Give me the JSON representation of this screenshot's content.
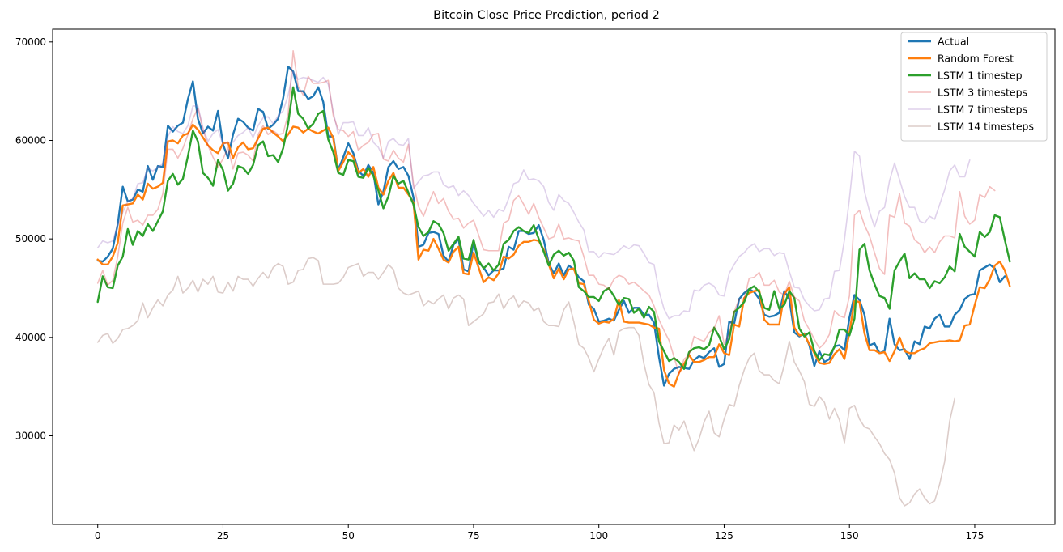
{
  "chart_data": {
    "type": "line",
    "title": "Bitcoin Close Price Prediction, period 2",
    "xlabel": "",
    "ylabel": "",
    "xlim": [
      -9,
      191
    ],
    "ylim": [
      21000,
      71300
    ],
    "xticks": [
      0,
      25,
      50,
      75,
      100,
      125,
      150,
      175
    ],
    "yticks": [
      30000,
      40000,
      50000,
      60000,
      70000
    ],
    "grid": false,
    "legend_position": "top-right",
    "series": [
      {
        "name": "Actual",
        "color": "#1f77b4",
        "width": 2.4,
        "opacity": 1,
        "x0": 0,
        "values": [
          47800,
          47700,
          48200,
          49000,
          51500,
          55300,
          53800,
          54000,
          55000,
          54800,
          57400,
          56000,
          57400,
          57300,
          61500,
          60900,
          61500,
          61800,
          64200,
          66000,
          62200,
          60700,
          61400,
          61000,
          63000,
          59600,
          58200,
          60600,
          62200,
          61900,
          61300,
          61000,
          63200,
          62900,
          61200,
          61600,
          62200,
          64300,
          67500,
          67000,
          65000,
          65000,
          64200,
          64500,
          65400,
          63900,
          60400,
          60400,
          57000,
          58300,
          59700,
          58700,
          56900,
          56400,
          57500,
          56700,
          53500,
          54800,
          57300,
          57900,
          57100,
          57300,
          56400,
          54200,
          49200,
          49400,
          50600,
          50700,
          50500,
          48300,
          47700,
          49400,
          50000,
          46900,
          46700,
          49700,
          47600,
          47100,
          46300,
          46800,
          46800,
          47000,
          49200,
          48900,
          50800,
          50800,
          50500,
          50600,
          51400,
          49900,
          47500,
          46500,
          47500,
          46300,
          47300,
          46900,
          46100,
          45700,
          43300,
          42900,
          41600,
          41700,
          41900,
          41700,
          42800,
          43700,
          42500,
          43000,
          43000,
          42300,
          42300,
          41500,
          38000,
          35100,
          36300,
          36800,
          37000,
          36900,
          36800,
          37700,
          38100,
          37900,
          38500,
          38900,
          37000,
          37300,
          41600,
          41400,
          43900,
          44500,
          44900,
          44600,
          43900,
          42300,
          42100,
          42200,
          42500,
          44700,
          43900,
          40500,
          40100,
          40400,
          39200,
          37100,
          38600,
          37500,
          37800,
          39100,
          39200,
          38700,
          42000,
          44300,
          43800,
          42300,
          39200,
          39400,
          38400,
          38600,
          41900,
          39300,
          38700,
          38800,
          37800,
          39600,
          39300,
          41100,
          40900,
          41900,
          42300,
          41100,
          41100,
          42300,
          42800,
          43900,
          44300,
          44400,
          46800,
          47100,
          47400,
          47000,
          45600,
          46200
        ]
      },
      {
        "name": "Random Forest",
        "color": "#ff7f0e",
        "width": 2.4,
        "opacity": 1,
        "x0": 0,
        "values": [
          47900,
          47400,
          47400,
          48200,
          49600,
          53400,
          53500,
          53600,
          54500,
          54000,
          55600,
          55100,
          55300,
          55700,
          59900,
          60000,
          59700,
          60500,
          60700,
          61600,
          61100,
          60300,
          59500,
          59000,
          58700,
          59700,
          59800,
          58200,
          59300,
          59800,
          59100,
          59200,
          60200,
          61200,
          61300,
          60800,
          60400,
          59900,
          60600,
          61400,
          61300,
          60800,
          61200,
          60900,
          60700,
          61000,
          61300,
          60200,
          56900,
          57800,
          58800,
          58300,
          56700,
          57100,
          56300,
          57300,
          55200,
          54500,
          55900,
          56700,
          55200,
          55200,
          54500,
          53700,
          47900,
          48900,
          48800,
          50000,
          49000,
          47900,
          47600,
          48700,
          49200,
          46500,
          46400,
          48600,
          47100,
          45600,
          46100,
          45800,
          46500,
          48200,
          48000,
          48400,
          49300,
          49700,
          49700,
          49900,
          49800,
          48900,
          47400,
          46000,
          47000,
          45900,
          46900,
          47000,
          45500,
          45400,
          43700,
          41800,
          41400,
          41600,
          41500,
          41900,
          43800,
          41600,
          41500,
          41500,
          41500,
          41400,
          41300,
          41000,
          40900,
          36700,
          35300,
          35000,
          36400,
          37300,
          38200,
          37500,
          37500,
          37700,
          38000,
          38000,
          39300,
          38400,
          38200,
          41300,
          41100,
          44000,
          44500,
          44700,
          44800,
          41800,
          41300,
          41300,
          41300,
          44400,
          45100,
          41000,
          40200,
          40300,
          39300,
          38400,
          37400,
          37300,
          37400,
          38300,
          38800,
          37800,
          40500,
          43700,
          43600,
          40400,
          38700,
          38700,
          38400,
          38500,
          37600,
          38600,
          40000,
          38600,
          38400,
          38400,
          38700,
          38900,
          39400,
          39500,
          39600,
          39600,
          39700,
          39600,
          39700,
          41200,
          41300,
          43300,
          45100,
          45000,
          45900,
          47300,
          47700,
          46800,
          45200
        ]
      },
      {
        "name": "LSTM 1 timestep",
        "color": "#2ca02c",
        "width": 2.4,
        "opacity": 1,
        "x0": 0,
        "values": [
          43600,
          46200,
          45100,
          45000,
          47300,
          48200,
          51000,
          49400,
          50800,
          50300,
          51500,
          50800,
          51800,
          52800,
          55900,
          56600,
          55500,
          56100,
          58400,
          61000,
          59900,
          56700,
          56200,
          55400,
          58000,
          57000,
          54900,
          55600,
          57400,
          57200,
          56600,
          57500,
          59500,
          59900,
          58400,
          58500,
          57800,
          59200,
          61700,
          65400,
          62700,
          62200,
          61200,
          61700,
          62700,
          63000,
          60100,
          58800,
          56700,
          56500,
          58000,
          57900,
          56300,
          56200,
          57200,
          56400,
          54900,
          53100,
          54300,
          56400,
          55600,
          55900,
          54700,
          53500,
          51200,
          50300,
          50700,
          51800,
          51500,
          50600,
          48800,
          49500,
          50200,
          48000,
          47900,
          49900,
          47800,
          47000,
          47500,
          46800,
          47400,
          49500,
          49900,
          50800,
          51200,
          50800,
          50600,
          51400,
          50000,
          48700,
          47300,
          48400,
          48800,
          48300,
          48600,
          47800,
          45100,
          44700,
          44100,
          44100,
          43700,
          44700,
          45000,
          44200,
          43300,
          44000,
          43900,
          42500,
          42900,
          42000,
          43100,
          42600,
          39600,
          38600,
          37600,
          37900,
          37500,
          36800,
          38500,
          38900,
          39000,
          38800,
          39200,
          41000,
          40100,
          38800,
          39800,
          42600,
          43000,
          43600,
          44900,
          45200,
          44600,
          43000,
          42800,
          44700,
          42900,
          43300,
          44700,
          44000,
          40900,
          40100,
          40500,
          38600,
          37700,
          38300,
          38200,
          39000,
          40800,
          40800,
          40200,
          41900,
          48900,
          49500,
          46800,
          45400,
          44200,
          44000,
          42900,
          46800,
          47700,
          48500,
          46000,
          46500,
          45900,
          45900,
          45000,
          45700,
          45500,
          46100,
          47200,
          46700,
          50500,
          49200,
          48700,
          48200,
          50700,
          50200,
          50700,
          52400,
          52200,
          49900,
          47700
        ]
      },
      {
        "name": "LSTM 3 timesteps",
        "color": "#d62728",
        "width": 1.6,
        "opacity": 0.3,
        "x0": 0,
        "values": [
          45500,
          46800,
          45300,
          45800,
          48200,
          51600,
          53200,
          51700,
          51900,
          51400,
          52400,
          52400,
          53000,
          54600,
          59100,
          59100,
          58200,
          59200,
          60600,
          62200,
          63300,
          61100,
          59500,
          58300,
          57300,
          58100,
          59300,
          57100,
          58700,
          58800,
          58500,
          57900,
          60600,
          61500,
          60600,
          61000,
          60600,
          60700,
          62700,
          69100,
          65500,
          64600,
          66500,
          65800,
          65800,
          65900,
          66100,
          62500,
          61100,
          61000,
          60400,
          60900,
          59000,
          59500,
          59800,
          60600,
          60700,
          58100,
          57900,
          59000,
          58200,
          57800,
          59600,
          55600,
          53300,
          52300,
          53600,
          54800,
          53600,
          54100,
          52800,
          52000,
          52100,
          51100,
          51600,
          51900,
          50400,
          48900,
          48800,
          48800,
          48800,
          51600,
          51900,
          53900,
          54400,
          53500,
          52500,
          53600,
          52200,
          51100,
          50000,
          50200,
          51500,
          50000,
          50100,
          49900,
          49800,
          48200,
          46300,
          46300,
          45400,
          45300,
          44900,
          45900,
          46300,
          46100,
          45400,
          45600,
          45200,
          44700,
          44300,
          43200,
          41800,
          40700,
          39700,
          38000,
          36300,
          37800,
          38200,
          40100,
          39800,
          39600,
          40500,
          40900,
          42200,
          39300,
          40400,
          42600,
          43900,
          43900,
          46000,
          46100,
          46600,
          45300,
          45300,
          45800,
          44600,
          44300,
          45700,
          44100,
          43700,
          41700,
          40800,
          39800,
          38900,
          39400,
          40300,
          42700,
          42200,
          42000,
          44200,
          52400,
          52900,
          51400,
          50300,
          48600,
          47000,
          46400,
          52400,
          52200,
          54600,
          51600,
          51300,
          49900,
          49500,
          48600,
          49200,
          48600,
          49700,
          50300,
          50300,
          50100,
          54800,
          52300,
          51500,
          51900,
          54500,
          54200,
          55300,
          54900
        ]
      },
      {
        "name": "LSTM 7 timesteps",
        "color": "#9467bd",
        "width": 1.6,
        "opacity": 0.3,
        "x0": 0,
        "values": [
          49100,
          49800,
          49600,
          49800,
          51400,
          52700,
          53800,
          54100,
          55600,
          55700,
          57200,
          56900,
          57300,
          57600,
          60400,
          61400,
          60900,
          60700,
          61500,
          63500,
          63500,
          61300,
          59900,
          60700,
          61100,
          59600,
          59800,
          59800,
          60500,
          60800,
          61300,
          60300,
          61500,
          62300,
          62400,
          61700,
          62500,
          63000,
          64600,
          67000,
          66200,
          66400,
          66300,
          66100,
          65900,
          66400,
          65700,
          62900,
          60600,
          61800,
          61800,
          61900,
          60500,
          60500,
          61300,
          59800,
          59300,
          58200,
          59900,
          60200,
          59600,
          59500,
          60200,
          55100,
          55800,
          56400,
          56500,
          56800,
          56800,
          55500,
          55200,
          55400,
          54400,
          54900,
          54400,
          53600,
          53000,
          52300,
          52900,
          52200,
          53000,
          52800,
          54100,
          55600,
          55800,
          57000,
          56000,
          56100,
          55900,
          55300,
          53700,
          52900,
          54500,
          53900,
          53600,
          52700,
          51700,
          50900,
          48700,
          48700,
          48100,
          48600,
          48500,
          48400,
          48800,
          49300,
          49000,
          49400,
          49300,
          48500,
          47600,
          47400,
          44700,
          42900,
          41900,
          42200,
          42200,
          42700,
          42600,
          44800,
          44700,
          45300,
          45500,
          45200,
          44300,
          44200,
          46500,
          47400,
          48200,
          48600,
          49200,
          49500,
          48700,
          49000,
          49000,
          48300,
          48600,
          48500,
          46700,
          45100,
          45000,
          43800,
          43200,
          42700,
          42800,
          43900,
          44000,
          46700,
          46800,
          49900,
          54100,
          58900,
          58400,
          54800,
          52800,
          51200,
          52800,
          53200,
          55900,
          57700,
          56000,
          54300,
          53200,
          53200,
          51800,
          51600,
          52300,
          52000,
          53500,
          55000,
          56900,
          57500,
          56300,
          56300,
          58000
        ]
      },
      {
        "name": "LSTM 14 timesteps",
        "color": "#8c564b",
        "width": 1.6,
        "opacity": 0.3,
        "x0": 0,
        "values": [
          39500,
          40200,
          40400,
          39400,
          39900,
          40800,
          40900,
          41200,
          41700,
          43500,
          42000,
          43000,
          43800,
          43200,
          44300,
          44800,
          46200,
          44500,
          45000,
          45800,
          44600,
          45900,
          45400,
          46200,
          44600,
          44500,
          45600,
          44700,
          46200,
          45900,
          45900,
          45200,
          46000,
          46600,
          46000,
          47100,
          47500,
          47200,
          45400,
          45600,
          46800,
          46900,
          48000,
          48100,
          47800,
          45400,
          45400,
          45400,
          45500,
          46100,
          47100,
          47300,
          47500,
          46200,
          46600,
          46600,
          45900,
          46600,
          47400,
          46900,
          45000,
          44500,
          44300,
          44500,
          44700,
          43200,
          43700,
          43400,
          43900,
          44300,
          42900,
          44000,
          44300,
          43900,
          41200,
          41600,
          42000,
          42400,
          43500,
          43600,
          44400,
          42900,
          43800,
          44200,
          43100,
          43700,
          43500,
          42700,
          43000,
          41600,
          41200,
          41200,
          41100,
          42800,
          43600,
          41600,
          39300,
          38900,
          37900,
          36500,
          37800,
          39000,
          39900,
          38200,
          40600,
          40900,
          41000,
          41000,
          40200,
          37300,
          35200,
          34400,
          31300,
          29200,
          29300,
          31100,
          30600,
          31500,
          30000,
          28500,
          29700,
          31400,
          32500,
          30300,
          29900,
          31700,
          33200,
          33000,
          35100,
          36700,
          37900,
          38400,
          36600,
          36200,
          36200,
          35600,
          35300,
          37200,
          39600,
          37500,
          36600,
          35500,
          33200,
          33000,
          34000,
          33400,
          31700,
          32800,
          31600,
          29300,
          32800,
          33100,
          31700,
          30900,
          30700,
          29900,
          29200,
          28200,
          27600,
          26200,
          23700,
          22900,
          23200,
          24100,
          24600,
          23700,
          23100,
          23400,
          25100,
          27400,
          31500,
          33800
        ]
      }
    ]
  }
}
